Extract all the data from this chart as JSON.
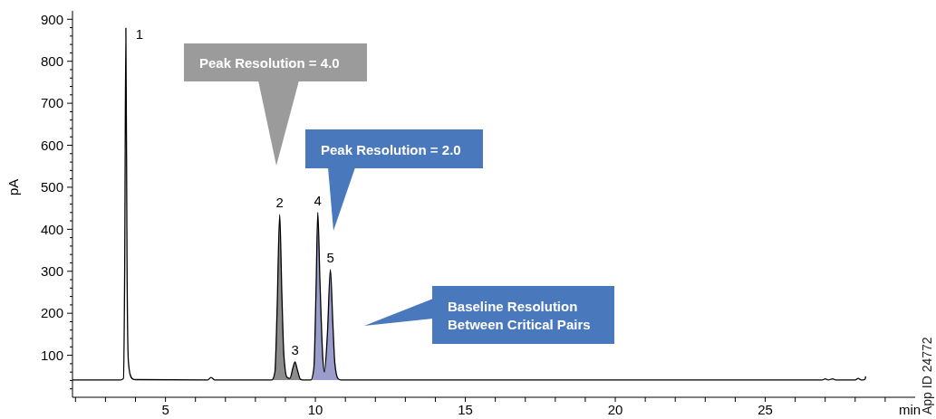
{
  "chart_data": {
    "type": "line",
    "xlabel": "min",
    "ylabel": "pA",
    "xlim": [
      1.9,
      30
    ],
    "ylim": [
      0,
      920
    ],
    "xticks": [
      {
        "value": 2,
        "label": null
      },
      {
        "value": 3,
        "label": null
      },
      {
        "value": 4,
        "label": null
      },
      5,
      {
        "value": 6,
        "label": null
      },
      {
        "value": 7,
        "label": null
      },
      {
        "value": 8,
        "label": null
      },
      {
        "value": 9,
        "label": null
      },
      10,
      {
        "value": 11,
        "label": null
      },
      {
        "value": 12,
        "label": null
      },
      {
        "value": 13,
        "label": null
      },
      {
        "value": 14,
        "label": null
      },
      15,
      {
        "value": 16,
        "label": null
      },
      {
        "value": 17,
        "label": null
      },
      {
        "value": 18,
        "label": null
      },
      {
        "value": 19,
        "label": null
      },
      20,
      {
        "value": 21,
        "label": null
      },
      {
        "value": 22,
        "label": null
      },
      {
        "value": 23,
        "label": null
      },
      {
        "value": 24,
        "label": null
      },
      25,
      {
        "value": 26,
        "label": null
      },
      {
        "value": 27,
        "label": null
      },
      {
        "value": 28,
        "label": null
      },
      {
        "value": 29,
        "label": null
      }
    ],
    "yticks": [
      {
        "value": 20,
        "label": null
      },
      {
        "value": 40,
        "label": null
      },
      {
        "value": 60,
        "label": null
      },
      {
        "value": 80,
        "label": null
      },
      100,
      {
        "value": 120,
        "label": null
      },
      {
        "value": 140,
        "label": null
      },
      {
        "value": 160,
        "label": null
      },
      {
        "value": 180,
        "label": null
      },
      200,
      {
        "value": 220,
        "label": null
      },
      {
        "value": 240,
        "label": null
      },
      {
        "value": 260,
        "label": null
      },
      {
        "value": 280,
        "label": null
      },
      300,
      {
        "value": 320,
        "label": null
      },
      {
        "value": 340,
        "label": null
      },
      {
        "value": 360,
        "label": null
      },
      {
        "value": 380,
        "label": null
      },
      400,
      {
        "value": 420,
        "label": null
      },
      {
        "value": 440,
        "label": null
      },
      {
        "value": 460,
        "label": null
      },
      {
        "value": 480,
        "label": null
      },
      500,
      {
        "value": 520,
        "label": null
      },
      {
        "value": 540,
        "label": null
      },
      {
        "value": 560,
        "label": null
      },
      {
        "value": 580,
        "label": null
      },
      600,
      {
        "value": 620,
        "label": null
      },
      {
        "value": 640,
        "label": null
      },
      {
        "value": 660,
        "label": null
      },
      {
        "value": 680,
        "label": null
      },
      700,
      {
        "value": 720,
        "label": null
      },
      {
        "value": 740,
        "label": null
      },
      {
        "value": 760,
        "label": null
      },
      {
        "value": 780,
        "label": null
      },
      800,
      {
        "value": 820,
        "label": null
      },
      {
        "value": 840,
        "label": null
      },
      {
        "value": 860,
        "label": null
      },
      {
        "value": 880,
        "label": null
      },
      900
    ],
    "series": [
      {
        "type": "area",
        "color": "#8c8c8c",
        "x": [
          8.55,
          8.65,
          8.72,
          8.81,
          8.88,
          8.95,
          9.05,
          9.15,
          9.25,
          9.32,
          9.4,
          9.5,
          9.62
        ],
        "values": [
          41,
          60,
          200,
          435,
          250,
          100,
          48,
          45,
          70,
          84,
          65,
          43,
          41
        ]
      },
      {
        "type": "area",
        "color": "#9a9ccc",
        "x": [
          9.85,
          9.95,
          10.02,
          10.08,
          10.15,
          10.25,
          10.3,
          10.4,
          10.5,
          10.58,
          10.65,
          10.75,
          10.85
        ],
        "values": [
          41,
          70,
          250,
          440,
          280,
          90,
          60,
          150,
          304,
          180,
          80,
          45,
          41
        ]
      },
      {
        "color": "#000000",
        "x": [
          1.9,
          3.5,
          3.6,
          3.64,
          3.68,
          3.72,
          3.76,
          3.82,
          3.9,
          4.0,
          6.4,
          6.52,
          6.65,
          8.55,
          8.65,
          8.72,
          8.81,
          8.88,
          8.95,
          9.05,
          9.15,
          9.25,
          9.32,
          9.4,
          9.5,
          9.62,
          9.85,
          9.95,
          10.02,
          10.08,
          10.15,
          10.25,
          10.3,
          10.4,
          10.5,
          10.58,
          10.65,
          10.75,
          10.85,
          26.9,
          27.0,
          27.1,
          27.25,
          27.35,
          27.45,
          28.0,
          28.1,
          28.2,
          28.33,
          28.35
        ],
        "values": [
          41,
          41,
          45,
          300,
          879,
          300,
          90,
          55,
          44,
          42,
          41,
          47,
          41,
          41,
          60,
          200,
          435,
          250,
          100,
          48,
          45,
          70,
          84,
          65,
          43,
          41,
          41,
          70,
          250,
          440,
          280,
          90,
          60,
          150,
          304,
          180,
          80,
          45,
          41,
          41,
          44,
          41,
          44,
          41,
          41,
          41,
          45,
          41,
          43,
          50
        ]
      }
    ],
    "annotations": [
      {
        "text": "1",
        "x": 3.68,
        "y": 879
      },
      {
        "text": "2",
        "x": 8.81,
        "y": 435
      },
      {
        "text": "3",
        "x": 9.32,
        "y": 84
      },
      {
        "text": "4",
        "x": 10.08,
        "y": 440
      },
      {
        "text": "5",
        "x": 10.5,
        "y": 304
      },
      "Peak Resolution = 4.0",
      "Peak Resolution = 2.0",
      "Baseline Resolution\nBetween Critical Pairs",
      "App ID 24772"
    ]
  }
}
